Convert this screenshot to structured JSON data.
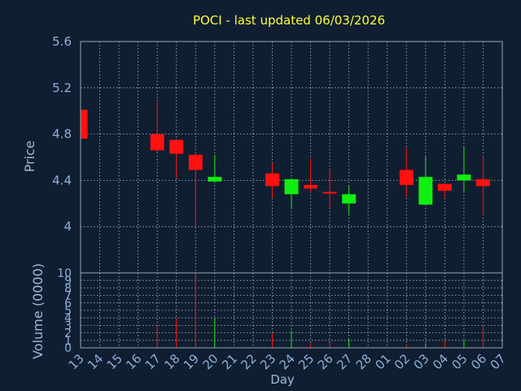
{
  "title": "POCI - last updated 06/03/2026",
  "colors": {
    "background": "#0f1e31",
    "title": "#ffff33",
    "axis_text": "#8fb0d8",
    "up": "#11ee11",
    "down": "#ff1111",
    "grid": "#b4bcc6"
  },
  "chart_data": [
    {
      "type": "candlestick",
      "ylabel": "Price",
      "ylim": [
        3.6,
        5.6
      ],
      "yticks": [
        "5.6",
        "5.2",
        "4.8",
        "4.4",
        "4"
      ],
      "ytick_values": [
        5.6,
        5.2,
        4.8,
        4.4,
        4.0
      ],
      "grid": true,
      "x_labels": [
        "13",
        "14",
        "15",
        "16",
        "17",
        "18",
        "19",
        "20",
        "21",
        "22",
        "23",
        "24",
        "25",
        "26",
        "27",
        "28",
        "01",
        "02",
        "03",
        "04",
        "05",
        "06",
        "07"
      ],
      "candles": [
        {
          "x": "13",
          "open": 5.01,
          "high": 5.01,
          "low": 4.76,
          "close": 4.76
        },
        {
          "x": "17",
          "open": 4.8,
          "high": 5.1,
          "low": 4.64,
          "close": 4.66
        },
        {
          "x": "18",
          "open": 4.75,
          "high": 4.75,
          "low": 4.42,
          "close": 4.63
        },
        {
          "x": "19",
          "open": 4.62,
          "high": 4.65,
          "low": 4.0,
          "close": 4.49
        },
        {
          "x": "20",
          "open": 4.39,
          "high": 4.62,
          "low": 4.39,
          "close": 4.43
        },
        {
          "x": "23",
          "open": 4.46,
          "high": 4.55,
          "low": 4.25,
          "close": 4.35
        },
        {
          "x": "24",
          "open": 4.28,
          "high": 4.42,
          "low": 4.16,
          "close": 4.41
        },
        {
          "x": "25",
          "open": 4.36,
          "high": 4.59,
          "low": 4.3,
          "close": 4.33
        },
        {
          "x": "26",
          "open": 4.3,
          "high": 4.49,
          "low": 4.16,
          "close": 4.29
        },
        {
          "x": "27",
          "open": 4.2,
          "high": 4.35,
          "low": 4.1,
          "close": 4.28
        },
        {
          "x": "02",
          "open": 4.49,
          "high": 4.68,
          "low": 4.26,
          "close": 4.36
        },
        {
          "x": "03",
          "open": 4.19,
          "high": 4.61,
          "low": 4.19,
          "close": 4.43
        },
        {
          "x": "04",
          "open": 4.37,
          "high": 4.37,
          "low": 4.25,
          "close": 4.31
        },
        {
          "x": "05",
          "open": 4.4,
          "high": 4.69,
          "low": 4.3,
          "close": 4.45
        },
        {
          "x": "06",
          "open": 4.41,
          "high": 4.61,
          "low": 4.1,
          "close": 4.35
        }
      ]
    },
    {
      "type": "bar",
      "ylabel": "Volume (0000)",
      "xlabel": "Day",
      "ylim": [
        0,
        10
      ],
      "yticks": [
        "10",
        "9",
        "8",
        "7",
        "6",
        "5",
        "4",
        "3",
        "2",
        "1",
        "0"
      ],
      "ytick_values": [
        10,
        9,
        8,
        7,
        6,
        5,
        4,
        3,
        2,
        1,
        0
      ],
      "bars": [
        {
          "x": "13",
          "value": 0.6,
          "dir": "down"
        },
        {
          "x": "17",
          "value": 3.0,
          "dir": "down"
        },
        {
          "x": "18",
          "value": 3.9,
          "dir": "down"
        },
        {
          "x": "19",
          "value": 9.9,
          "dir": "down"
        },
        {
          "x": "20",
          "value": 3.9,
          "dir": "up"
        },
        {
          "x": "23",
          "value": 1.9,
          "dir": "down"
        },
        {
          "x": "24",
          "value": 2.3,
          "dir": "up"
        },
        {
          "x": "25",
          "value": 0.6,
          "dir": "down"
        },
        {
          "x": "26",
          "value": 0.7,
          "dir": "down"
        },
        {
          "x": "27",
          "value": 1.3,
          "dir": "up"
        },
        {
          "x": "02",
          "value": 0.4,
          "dir": "down"
        },
        {
          "x": "03",
          "value": 0.6,
          "dir": "up"
        },
        {
          "x": "04",
          "value": 1.0,
          "dir": "down"
        },
        {
          "x": "05",
          "value": 1.0,
          "dir": "up"
        },
        {
          "x": "06",
          "value": 2.8,
          "dir": "down"
        }
      ]
    }
  ]
}
